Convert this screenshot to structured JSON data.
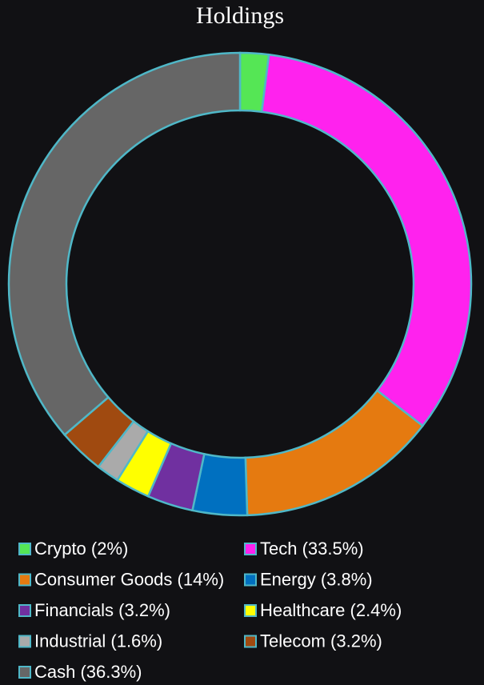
{
  "chart_data": {
    "type": "donut",
    "title": "Holdings",
    "categories": [
      "Crypto (2%)",
      "Tech (33.5%)",
      "Consumer Goods (14%)",
      "Energy (3.8%)",
      "Financials (3.2%)",
      "Healthcare (2.4%)",
      "Industrial (1.6%)",
      "Telecom (3.2%)",
      "Cash (36.3%)"
    ],
    "values": [
      2,
      33.5,
      14,
      3.8,
      3.2,
      2.4,
      1.6,
      3.2,
      36.3
    ],
    "colors": [
      "#55e655",
      "#ff22ee",
      "#e57a10",
      "#0070c0",
      "#7030a0",
      "#ffff00",
      "#aaaaaa",
      "#a04a10",
      "#666666"
    ],
    "edge_color": "#4fb8c8"
  }
}
